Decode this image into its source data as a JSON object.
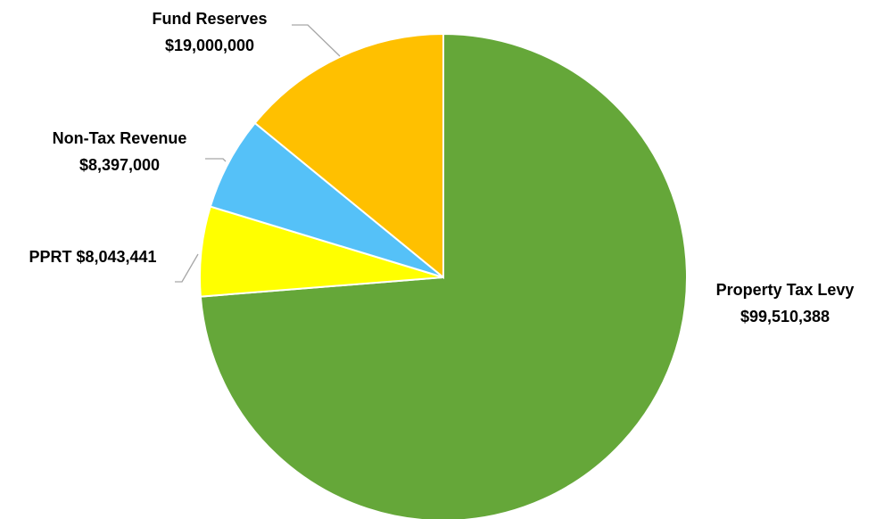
{
  "chart_data": {
    "type": "pie",
    "start_angle_deg": 0,
    "direction": "clockwise",
    "slices": [
      {
        "name": "Property Tax Levy",
        "value": 99510388,
        "value_label": "$99,510,388",
        "color": "#65A739"
      },
      {
        "name": "PPRT",
        "value": 8043441,
        "value_label": "$8,043,441",
        "color": "#FFFF00"
      },
      {
        "name": "Non-Tax Revenue",
        "value": 8397000,
        "value_label": "$8,397,000",
        "color": "#55C1F8"
      },
      {
        "name": "Fund Reserves",
        "value": 19000000,
        "value_label": "$19,000,000",
        "color": "#FFC000"
      }
    ],
    "legend": "none"
  }
}
